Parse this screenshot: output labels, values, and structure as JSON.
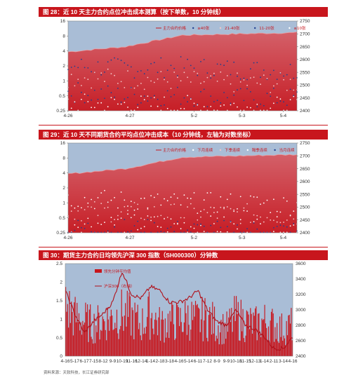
{
  "charts": [
    {
      "header": "图 28：近 10 天主力合约点位冲击成本测算（按下单数，10 分钟线）",
      "legend": [
        "主力合约价格",
        "≥40张",
        "21-40张",
        "11-20张",
        "≤10张"
      ],
      "y_left_ticks": [
        "16",
        "8",
        "4",
        "2",
        "1",
        "0.5",
        "0.25"
      ],
      "y_right_ticks": [
        "2750",
        "2700",
        "2650",
        "2600",
        "2550",
        "2500",
        "2450",
        "2400"
      ],
      "x_ticks": [
        "4-26",
        "4-27",
        "5-2",
        "5-3",
        "5-4"
      ]
    },
    {
      "header": "图 29：近 10 天不同期货合约平均点位冲击成本（10 分钟线，左轴为对数坐标）",
      "legend": [
        "主力合约价格",
        "下月连续",
        "下季连续",
        "隔季连续",
        "当月连续"
      ],
      "y_left_ticks": [
        "16",
        "8",
        "4",
        "2",
        "1",
        "0.5",
        "0.25"
      ],
      "y_right_ticks": [
        "2750",
        "2700",
        "2650",
        "2600",
        "2550",
        "2500",
        "2450",
        "2400"
      ],
      "x_ticks": [
        "4-26",
        "4-27",
        "5-2",
        "5-3",
        "5-4"
      ]
    },
    {
      "header": "图 30：期货主力合约日均领先沪深 300 指数（SH000300）分钟数",
      "legend": [
        "领先分钟平均值",
        "沪深300（右轴）"
      ],
      "y_left_ticks": [
        "2.5",
        "2",
        "1.5",
        "1",
        "0.5",
        "0"
      ],
      "y_right_ticks": [
        "3600",
        "3400",
        "3200",
        "3000",
        "2800",
        "2600",
        "2400"
      ],
      "x_ticks": [
        "4-16",
        "5-17",
        "6-17",
        "7-15",
        "8-12",
        "9-9",
        "10-19",
        "11-16",
        "12-14",
        "1-14",
        "2-18",
        "3-18",
        "4-16",
        "5-14",
        "6-11",
        "7-12",
        "8-9",
        "9-9",
        "10-18",
        "11-15",
        "12-13",
        "1-14",
        "2-11",
        "3-14",
        "4-16"
      ]
    }
  ],
  "footer": "资料来源：天软科技，长江证券研究部",
  "colors": {
    "accent": "#c8161d",
    "panel_bg": "#a9bdd6",
    "red_fill": "#c8161d"
  },
  "chart_data": [
    {
      "type": "scatter",
      "title": "近 10 天主力合约点位冲击成本测算（按下单数，10 分钟线）",
      "y_left_scale": "log2",
      "ylim_left": [
        0.25,
        16
      ],
      "ylim_right": [
        2400,
        2750
      ],
      "x": [
        "4-26",
        "4-27",
        "5-2",
        "5-3",
        "5-4"
      ],
      "series": [
        {
          "name": "主力合约价格",
          "axis": "right",
          "values": [
            2630,
            2650,
            2695,
            2700,
            2705
          ]
        },
        {
          "name": "≥40张",
          "axis": "left",
          "values": [
            2.0,
            1.8,
            1.9,
            1.7,
            1.6
          ]
        },
        {
          "name": "21-40张",
          "axis": "left",
          "values": [
            1.2,
            1.1,
            1.0,
            0.9,
            0.9
          ]
        },
        {
          "name": "11-20张",
          "axis": "left",
          "values": [
            0.6,
            0.5,
            0.5,
            0.45,
            0.45
          ]
        },
        {
          "name": "≤10张",
          "axis": "left",
          "values": [
            0.35,
            0.33,
            0.32,
            0.3,
            0.3
          ]
        }
      ]
    },
    {
      "type": "scatter",
      "title": "近 10 天不同期货合约平均点位冲击成本（10 分钟线，左轴为对数坐标）",
      "y_left_scale": "log2",
      "ylim_left": [
        0.25,
        16
      ],
      "ylim_right": [
        2400,
        2750
      ],
      "x": [
        "4-26",
        "4-27",
        "5-2",
        "5-3",
        "5-4"
      ],
      "series": [
        {
          "name": "主力合约价格",
          "axis": "right",
          "values": [
            2630,
            2650,
            2695,
            2700,
            2705
          ]
        },
        {
          "name": "下月连续",
          "axis": "left",
          "values": [
            0.4,
            0.38,
            0.35,
            0.33,
            0.32
          ]
        },
        {
          "name": "下季连续",
          "axis": "left",
          "values": [
            0.7,
            0.65,
            0.6,
            0.6,
            0.55
          ]
        },
        {
          "name": "隔季连续",
          "axis": "left",
          "values": [
            1.2,
            1.1,
            1.0,
            1.0,
            0.9
          ]
        },
        {
          "name": "当月连续",
          "axis": "left",
          "values": [
            0.3,
            0.3,
            0.28,
            0.28,
            0.27
          ]
        }
      ]
    },
    {
      "type": "bar",
      "title": "期货主力合约日均领先沪深 300 指数（SH000300）分钟数",
      "ylim_left": [
        0,
        2.5
      ],
      "ylim_right": [
        2400,
        3600
      ],
      "x": [
        "4-16",
        "5-17",
        "6-17",
        "7-15",
        "8-12",
        "9-9",
        "10-19",
        "11-16",
        "12-14",
        "1-14",
        "2-18",
        "3-18",
        "4-16",
        "5-14",
        "6-11",
        "7-12",
        "8-9",
        "9-9",
        "10-18",
        "11-15",
        "12-13",
        "1-14",
        "2-11",
        "3-14",
        "4-16"
      ],
      "series": [
        {
          "name": "领先分钟平均值",
          "axis": "left",
          "values": [
            1.3,
            1.0,
            0.9,
            0.8,
            0.9,
            1.0,
            1.1,
            1.0,
            0.8,
            1.1,
            0.8,
            0.9,
            0.9,
            1.0,
            0.9,
            1.0,
            0.8,
            0.7,
            1.0,
            0.9,
            0.8,
            0.9,
            0.8,
            0.7,
            0.8
          ]
        },
        {
          "name": "沪深300（右轴）",
          "axis": "right",
          "values": [
            3250,
            2950,
            2700,
            2850,
            2950,
            3100,
            3500,
            3200,
            3150,
            3300,
            3250,
            3100,
            3100,
            3150,
            3250,
            3000,
            2850,
            2800,
            3000,
            2800,
            2750,
            2650,
            2500,
            2500,
            2650
          ]
        }
      ]
    }
  ]
}
